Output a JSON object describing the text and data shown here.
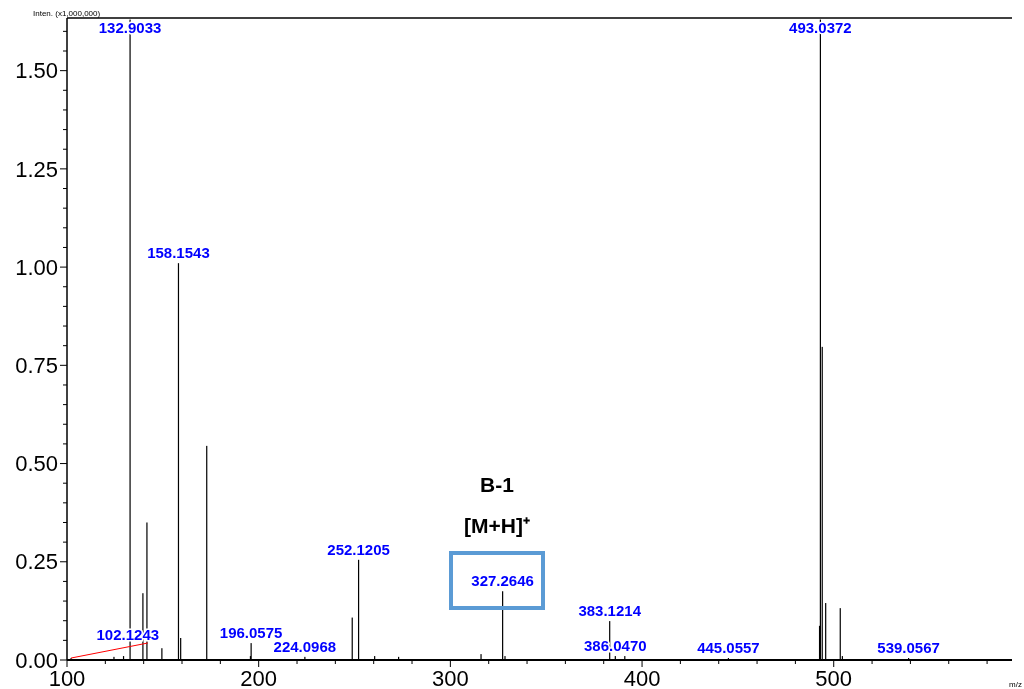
{
  "chart_data": {
    "type": "bar",
    "ylabel": "Inten. (x1,000,000)",
    "xlabel": "m/z",
    "color": "#000000",
    "x": [
      102.1243,
      124.5,
      129.5,
      132.9033,
      139.6,
      141.7,
      149.5,
      158.1543,
      159.3,
      172.9,
      195.7,
      196.0575,
      224.0968,
      248.8,
      252.1205,
      260.5,
      273,
      316,
      327.2646,
      328.5,
      383.1214,
      386.047,
      391,
      445.0557,
      492.6,
      493.0372,
      494,
      495.8,
      503.4,
      504.5,
      539.0567
    ],
    "values": [
      0.005,
      0.008,
      0.01,
      1.63,
      0.17,
      0.35,
      0.03,
      1.01,
      0.056,
      0.545,
      0.01,
      0.043,
      0.008,
      0.108,
      0.255,
      0.01,
      0.008,
      0.015,
      0.175,
      0.01,
      0.099,
      0.01,
      0.01,
      0.005,
      0.087,
      1.63,
      0.797,
      0.145,
      0.132,
      0.01,
      0.005
    ],
    "xlim": [
      100,
      593
    ],
    "xticks": [
      {
        "value": 100,
        "label": "100"
      },
      {
        "value": 120,
        "label": null
      },
      {
        "value": 140,
        "label": null
      },
      {
        "value": 160,
        "label": null
      },
      {
        "value": 180,
        "label": null
      },
      {
        "value": 200,
        "label": "200"
      },
      {
        "value": 220,
        "label": null
      },
      {
        "value": 240,
        "label": null
      },
      {
        "value": 260,
        "label": null
      },
      {
        "value": 280,
        "label": null
      },
      {
        "value": 300,
        "label": "300"
      },
      {
        "value": 320,
        "label": null
      },
      {
        "value": 340,
        "label": null
      },
      {
        "value": 360,
        "label": null
      },
      {
        "value": 380,
        "label": null
      },
      {
        "value": 400,
        "label": "400"
      },
      {
        "value": 420,
        "label": null
      },
      {
        "value": 440,
        "label": null
      },
      {
        "value": 460,
        "label": null
      },
      {
        "value": 480,
        "label": null
      },
      {
        "value": 500,
        "label": "500"
      },
      {
        "value": 520,
        "label": null
      },
      {
        "value": 540,
        "label": null
      },
      {
        "value": 560,
        "label": null
      },
      {
        "value": 580,
        "label": null
      }
    ],
    "ylim": [
      0,
      1.634
    ],
    "yticks": [
      {
        "value": 0,
        "label": "0.00"
      },
      {
        "value": 0.05,
        "label": null
      },
      {
        "value": 0.1,
        "label": null
      },
      {
        "value": 0.15,
        "label": null
      },
      {
        "value": 0.2,
        "label": null
      },
      {
        "value": 0.25,
        "label": "0.25"
      },
      {
        "value": 0.3,
        "label": null
      },
      {
        "value": 0.35,
        "label": null
      },
      {
        "value": 0.4,
        "label": null
      },
      {
        "value": 0.45,
        "label": null
      },
      {
        "value": 0.5,
        "label": "0.50"
      },
      {
        "value": 0.55,
        "label": null
      },
      {
        "value": 0.6,
        "label": null
      },
      {
        "value": 0.65,
        "label": null
      },
      {
        "value": 0.7,
        "label": null
      },
      {
        "value": 0.75,
        "label": "0.75"
      },
      {
        "value": 0.8,
        "label": null
      },
      {
        "value": 0.85,
        "label": null
      },
      {
        "value": 0.9,
        "label": null
      },
      {
        "value": 0.95,
        "label": null
      },
      {
        "value": 1.0,
        "label": "1.00"
      },
      {
        "value": 1.05,
        "label": null
      },
      {
        "value": 1.1,
        "label": null
      },
      {
        "value": 1.15,
        "label": null
      },
      {
        "value": 1.2,
        "label": null
      },
      {
        "value": 1.25,
        "label": "1.25"
      },
      {
        "value": 1.3,
        "label": null
      },
      {
        "value": 1.35,
        "label": null
      },
      {
        "value": 1.4,
        "label": null
      },
      {
        "value": 1.45,
        "label": null
      },
      {
        "value": 1.5,
        "label": "1.50"
      },
      {
        "value": 1.55,
        "label": null
      },
      {
        "value": 1.6,
        "label": null
      }
    ],
    "annotations": [
      {
        "text": "102.1243",
        "x": 102.1243,
        "y": 0.005
      },
      {
        "text": "132.9033",
        "x": 132.9033,
        "y": 1.63
      },
      {
        "text": "158.1543",
        "x": 158.1543,
        "y": 1.01
      },
      {
        "text": "196.0575",
        "x": 196.0575,
        "y": 0.043
      },
      {
        "text": "224.0968",
        "x": 224.0968,
        "y": 0.008
      },
      {
        "text": "252.1205",
        "x": 252.1205,
        "y": 0.255
      },
      {
        "text": "327.2646",
        "x": 327.2646,
        "y": 0.175
      },
      {
        "text": "383.1214",
        "x": 383.1214,
        "y": 0.099
      },
      {
        "text": "386.0470",
        "x": 386.047,
        "y": 0.01
      },
      {
        "text": "445.0557",
        "x": 445.0557,
        "y": 0.005
      },
      {
        "text": "493.0372",
        "x": 493.0372,
        "y": 1.63
      },
      {
        "text": "539.0567",
        "x": 539.0567,
        "y": 0.005
      },
      "B-1",
      "[M+H]⁺"
    ]
  }
}
